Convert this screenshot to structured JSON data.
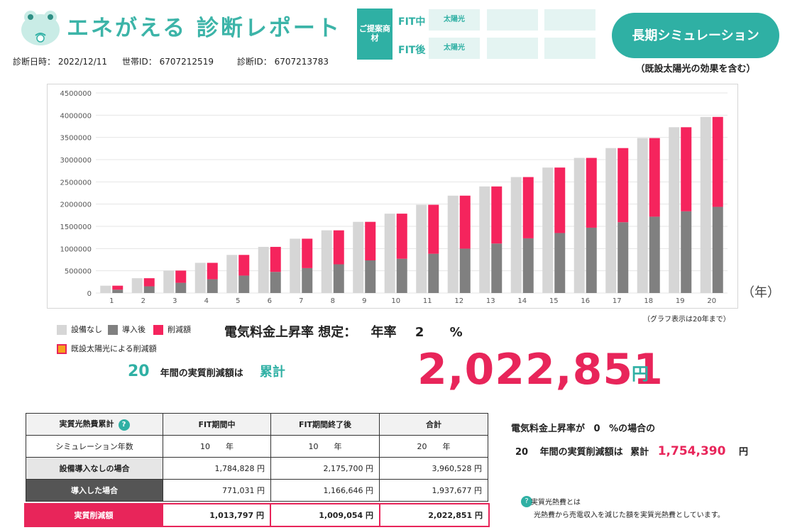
{
  "header": {
    "logo_text": "エネがえる",
    "logo_sub": "診断レポート",
    "diag_date_label": "診断日時：",
    "diag_date": "2022/12/11",
    "household_label": "世帯ID：",
    "household_id": "6707212519",
    "diag_id_label": "診断ID：",
    "diag_id": "6707213783"
  },
  "proposal": {
    "box_label": "ご提案商材",
    "fit_during_label": "FIT中",
    "fit_after_label": "FIT後",
    "fit_during_value": "太陽光",
    "fit_after_value": "太陽光"
  },
  "long_sim": {
    "button_label": "長期シミュレーション",
    "sub_label": "（既設太陽光の効果を含む）"
  },
  "chart_data": {
    "type": "bar",
    "categories": [
      "1",
      "2",
      "3",
      "4",
      "5",
      "6",
      "7",
      "8",
      "9",
      "10",
      "11",
      "12",
      "13",
      "14",
      "15",
      "16",
      "17",
      "18",
      "19",
      "20"
    ],
    "series": [
      {
        "name": "設備なし",
        "color": "#d6d6d6",
        "values": [
          165000,
          333000,
          505000,
          679000,
          857000,
          1038000,
          1222000,
          1410000,
          1601000,
          1785000,
          1985000,
          2190000,
          2397000,
          2608000,
          2822000,
          3039000,
          3260000,
          3485000,
          3729000,
          3961000
        ]
      },
      {
        "name": "導入後",
        "color": "#808080",
        "values": [
          75000,
          151000,
          230000,
          310000,
          392000,
          475000,
          560000,
          646000,
          734000,
          771000,
          883000,
          998000,
          1113000,
          1230000,
          1349000,
          1469000,
          1592000,
          1717000,
          1838000,
          1938000
        ]
      },
      {
        "name": "削減額",
        "color": "#f5245d",
        "values": [
          90000,
          182000,
          275000,
          369000,
          465000,
          563000,
          662000,
          764000,
          867000,
          1014000,
          1102000,
          1192000,
          1284000,
          1378000,
          1473000,
          1570000,
          1668000,
          1768000,
          1891000,
          2023000
        ]
      }
    ],
    "yticks": [
      0,
      500000,
      1000000,
      1500000,
      2000000,
      2500000,
      3000000,
      3500000,
      4000000,
      4500000
    ],
    "ylim": [
      0,
      4500000
    ],
    "xlabel": "（年）",
    "note": "（グラフ表示は20年まで）",
    "grid": true
  },
  "legend": {
    "none": "設備なし",
    "after": "導入後",
    "reduction": "削減額",
    "existing": "既設太陽光による削減額"
  },
  "rate": {
    "label": "電気料金上昇率 想定：",
    "unit_label": "年率",
    "value": "2",
    "percent": "%"
  },
  "summary": {
    "years": "20",
    "years_text": "年間の実質削減額は",
    "cumulative": "累計",
    "amount": "2,022,851",
    "yen": "円"
  },
  "table": {
    "header": [
      "実質光熱費累計",
      "FIT期間中",
      "FIT期間終了後",
      "合計"
    ],
    "sim_years_label": "シミュレーション年数",
    "sim_years": [
      "10　　年",
      "10　　年",
      "20　　年"
    ],
    "no_equipment_label": "設備導入なしの場合",
    "no_equipment": [
      "1,784,828 円",
      "2,175,700 円",
      "3,960,528 円"
    ],
    "introduced_label": "導入した場合",
    "introduced": [
      "771,031 円",
      "1,166,646 円",
      "1,937,677 円"
    ],
    "reduction_label": "実質削減額",
    "reduction": [
      "1,013,797 円",
      "1,009,054 円",
      "2,022,851 円"
    ]
  },
  "zero_case": {
    "line1_a": "電気料金上昇率が",
    "rate": "0",
    "line1_b": "%の場合の",
    "years": "20",
    "years_text": "年間の実質削減額は",
    "cumulative": "累計",
    "amount": "1,754,390",
    "yen": "円"
  },
  "note": {
    "title": "実質光熱費とは",
    "body": "光熱費から売電収入を減じた額を実質光熱費としています。"
  },
  "colors": {
    "accent": "#2fb0a4",
    "pink": "#e8255a",
    "bar_gray_light": "#d6d6d6",
    "bar_gray_dark": "#808080",
    "bar_red": "#f5245d"
  }
}
